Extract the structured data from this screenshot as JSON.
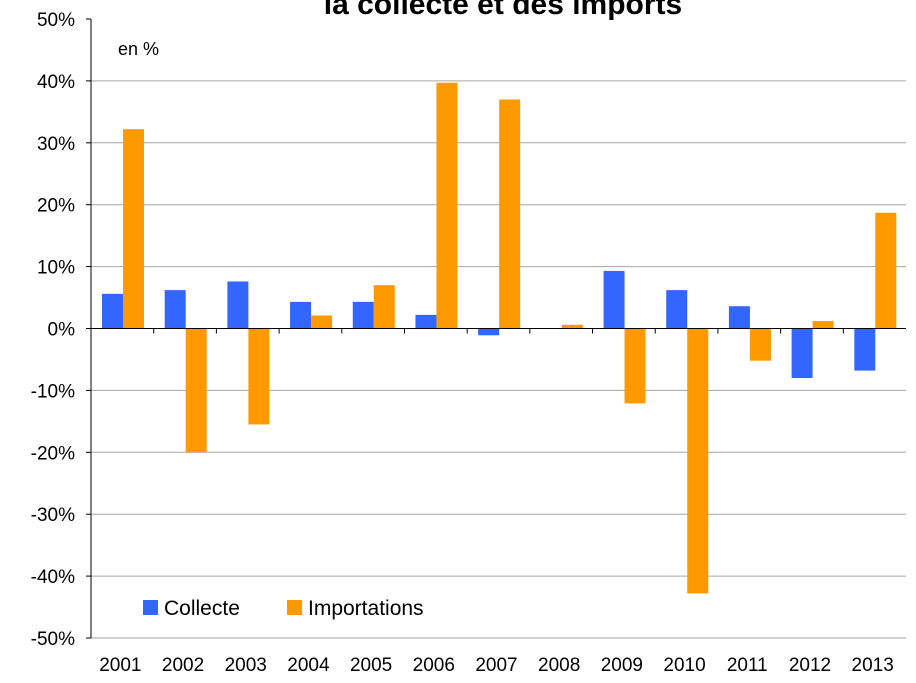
{
  "chart_data": {
    "type": "bar",
    "title": "la collecte et des imports",
    "unit_label": "en %",
    "categories": [
      "2001",
      "2002",
      "2003",
      "2004",
      "2005",
      "2006",
      "2007",
      "2008",
      "2009",
      "2010",
      "2011",
      "2012",
      "2013"
    ],
    "series": [
      {
        "name": "Collecte",
        "color": "#3366FF",
        "values": [
          5.6,
          6.2,
          7.6,
          4.3,
          4.3,
          2.2,
          -1.1,
          null,
          9.3,
          6.2,
          3.6,
          -8.0,
          -6.8
        ]
      },
      {
        "name": "Importations",
        "color": "#FF9900",
        "values": [
          32.2,
          -20.0,
          -15.5,
          2.1,
          7.0,
          39.7,
          37.0,
          0.6,
          -12.1,
          -42.8,
          -5.2,
          1.2,
          18.7
        ]
      }
    ],
    "y_ticks": [
      "50%",
      "40%",
      "30%",
      "20%",
      "10%",
      "0%",
      "-10%",
      "-20%",
      "-30%",
      "-40%",
      "-50%"
    ],
    "ylim": [
      -50,
      50
    ],
    "xlabel": "",
    "ylabel": "",
    "grid": true,
    "legend_position": "bottom-left"
  }
}
